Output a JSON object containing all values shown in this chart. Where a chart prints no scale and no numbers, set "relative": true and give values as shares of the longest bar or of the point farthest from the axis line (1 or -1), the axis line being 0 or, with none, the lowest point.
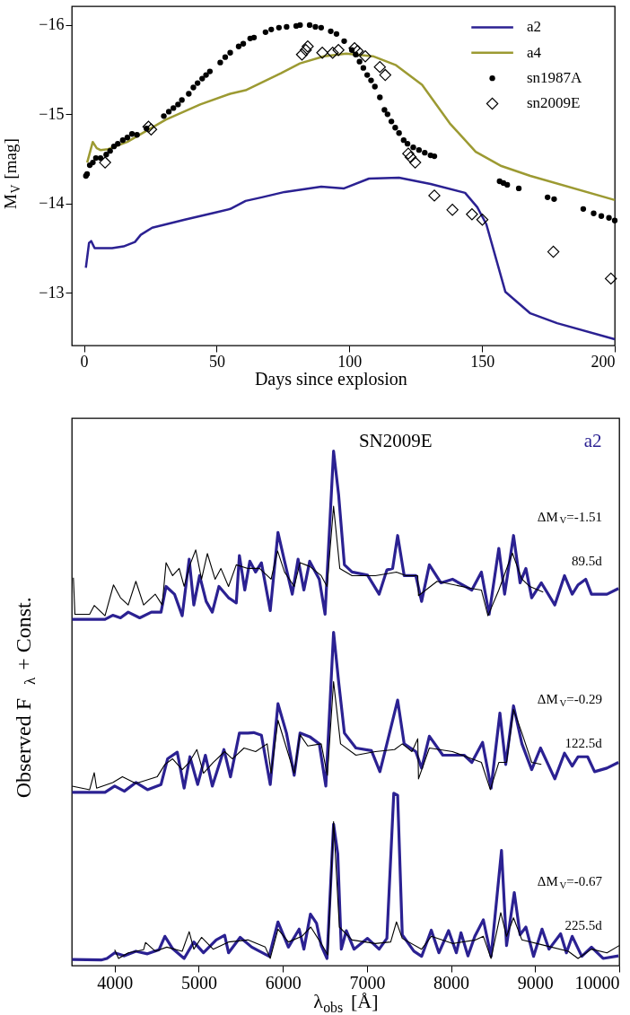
{
  "chart_data": [
    {
      "type": "line",
      "xlabel": "Days since explosion",
      "ylabel": "M$_{V}$ [mag]",
      "xlim": [
        -4.6,
        200
      ],
      "ylim": [
        -12.41,
        -16.21
      ],
      "xticks": [
        0,
        50,
        100,
        150,
        200
      ],
      "yticks": [
        -16,
        -15,
        -14,
        -13
      ],
      "legend": "top right",
      "grid": false,
      "series": [
        {
          "name": "a2",
          "type": "line",
          "color": "#2b2192",
          "x": [
            0.7,
            1.9,
            2.7,
            4.0,
            6.2,
            10.6,
            14.9,
            19.2,
            21.4,
            25.7,
            38.0,
            49.6,
            55.1,
            60.9,
            67.0,
            75.6,
            89.4,
            98.0,
            107.4,
            118.7,
            130.6,
            143.6,
            148.2,
            151.6,
            158.8,
            168.2,
            178.3,
            200
          ],
          "values": [
            -13.28,
            -13.56,
            -13.58,
            -13.5,
            -13.5,
            -13.5,
            -13.52,
            -13.57,
            -13.65,
            -13.73,
            -13.82,
            -13.9,
            -13.94,
            -14.03,
            -14.07,
            -14.13,
            -14.19,
            -14.17,
            -14.28,
            -14.29,
            -14.22,
            -14.12,
            -13.96,
            -13.77,
            -13.01,
            -12.77,
            -12.66,
            -12.48
          ]
        },
        {
          "name": "a4",
          "type": "line",
          "color": "#9c9a32",
          "x": [
            1.2,
            3.3,
            4.8,
            6.2,
            9.1,
            16.3,
            30.8,
            43.8,
            55.1,
            60.9,
            74.2,
            81.4,
            90.4,
            98.8,
            108.9,
            117.6,
            127.4,
            137.8,
            147.6,
            157.3,
            168.2,
            200
          ],
          "values": [
            -14.46,
            -14.69,
            -14.62,
            -14.6,
            -14.61,
            -14.69,
            -14.94,
            -15.11,
            -15.23,
            -15.27,
            -15.46,
            -15.57,
            -15.65,
            -15.68,
            -15.65,
            -15.55,
            -15.33,
            -14.9,
            -14.58,
            -14.42,
            -14.31,
            -14.04
          ]
        },
        {
          "name": "sn1987A",
          "type": "scatter",
          "marker": "circle",
          "color": "#000000",
          "x": [
            0.72,
            1.16,
            2.17,
            3.33,
            4.48,
            6.22,
            8.39,
            9.83,
            11.28,
            12.73,
            14.61,
            16.34,
            18.08,
            19.96,
            23.57,
            30.08,
            31.96,
            33.69,
            35.43,
            36.88,
            39.48,
            41.21,
            42.8,
            44.54,
            45.99,
            47.43,
            51.34,
            53.22,
            55.1,
            58.28,
            60.01,
            62.62,
            64.06,
            68.4,
            70.57,
            73.46,
            76.35,
            79.97,
            81.41,
            85.03,
            87.2,
            89.37,
            92.98,
            95.15,
            98.04,
            100.94,
            102.38,
            103.83,
            105.27,
            106.72,
            108.17,
            109.61,
            111.49,
            113.23,
            114.38,
            115.83,
            117.28,
            118.72,
            120.46,
            121.9,
            124.07,
            126.24,
            128.41,
            130.58,
            132.03,
            156.61,
            158.06,
            159.5,
            163.84,
            174.69,
            177.15,
            188.14,
            192.05,
            194.94,
            197.83,
            200.0
          ],
          "values": [
            -14.31,
            -14.33,
            -14.43,
            -14.46,
            -14.51,
            -14.51,
            -14.55,
            -14.59,
            -14.64,
            -14.67,
            -14.71,
            -14.74,
            -14.78,
            -14.77,
            -14.84,
            -14.98,
            -15.03,
            -15.07,
            -15.11,
            -15.16,
            -15.23,
            -15.3,
            -15.35,
            -15.4,
            -15.44,
            -15.48,
            -15.58,
            -15.64,
            -15.69,
            -15.76,
            -15.79,
            -15.85,
            -15.86,
            -15.92,
            -15.95,
            -15.97,
            -15.98,
            -15.99,
            -16.0,
            -16.0,
            -15.98,
            -15.97,
            -15.93,
            -15.9,
            -15.82,
            -15.72,
            -15.67,
            -15.59,
            -15.52,
            -15.44,
            -15.38,
            -15.31,
            -15.19,
            -15.05,
            -15.0,
            -14.92,
            -14.85,
            -14.79,
            -14.71,
            -14.67,
            -14.63,
            -14.6,
            -14.57,
            -14.54,
            -14.53,
            -14.25,
            -14.23,
            -14.21,
            -14.17,
            -14.07,
            -14.05,
            -13.94,
            -13.89,
            -13.86,
            -13.84,
            -13.81
          ]
        },
        {
          "name": "sn2009E",
          "type": "scatter",
          "marker": "diamond",
          "color": "#000000",
          "x": [
            7.95,
            24.3,
            25.31,
            82.14,
            83.59,
            84.31,
            89.8,
            93.71,
            95.88,
            101.95,
            103.11,
            106.0,
            111.49,
            113.52,
            122.2,
            123.07,
            124.8,
            132.03,
            138.83,
            146.2,
            150.11,
            176.86,
            198.55
          ],
          "values": [
            -14.46,
            -14.86,
            -14.83,
            -15.67,
            -15.72,
            -15.76,
            -15.69,
            -15.69,
            -15.72,
            -15.74,
            -15.71,
            -15.65,
            -15.53,
            -15.44,
            -14.56,
            -14.52,
            -14.46,
            -14.09,
            -13.93,
            -13.88,
            -13.82,
            -13.46,
            -13.16
          ]
        }
      ]
    },
    {
      "type": "line",
      "relative": true,
      "xlabel": "λ$_{obs}$ [Å]",
      "ylabel": "Observed F$_{λ}$ + Const.",
      "xlim": [
        3490,
        10000
      ],
      "xticks": [
        4000,
        5000,
        6000,
        7000,
        8000,
        9000,
        10000
      ],
      "legend": false,
      "grid": false,
      "series": [
        {
          "name": "a2",
          "color": "#2b2192",
          "x": [
            3495,
            3885,
            3977,
            4069,
            4161,
            4298,
            4436,
            4551,
            4611,
            4711,
            4803,
            4886,
            4941,
            5010,
            5088,
            5161,
            5240,
            5354,
            5446,
            5483,
            5547,
            5607,
            5676,
            5745,
            5850,
            5942,
            6020,
            6112,
            6181,
            6250,
            6319,
            6433,
            6502,
            6603,
            6663,
            6732,
            6823,
            7007,
            7145,
            7237,
            7305,
            7365,
            7443,
            7581,
            7650,
            7742,
            7879,
            8017,
            8247,
            8361,
            8453,
            8568,
            8637,
            8743,
            8821,
            8890,
            8959,
            9074,
            9234,
            9349,
            9441,
            9510,
            9601,
            9670,
            9854,
            9991
          ],
          "values": [
            0.673,
            0.673,
            0.681,
            0.676,
            0.687,
            0.676,
            0.687,
            0.687,
            0.737,
            0.722,
            0.68,
            0.79,
            0.701,
            0.758,
            0.708,
            0.687,
            0.737,
            0.715,
            0.705,
            0.797,
            0.73,
            0.786,
            0.765,
            0.783,
            0.69,
            0.842,
            0.786,
            0.722,
            0.79,
            0.73,
            0.786,
            0.751,
            0.683,
            1.0,
            0.915,
            0.779,
            0.765,
            0.759,
            0.722,
            0.769,
            0.772,
            0.836,
            0.758,
            0.758,
            0.708,
            0.779,
            0.744,
            0.751,
            0.73,
            0.765,
            0.683,
            0.811,
            0.722,
            0.836,
            0.744,
            0.772,
            0.715,
            0.744,
            0.701,
            0.758,
            0.722,
            0.74,
            0.751,
            0.722,
            0.722,
            0.733
          ]
        },
        {
          "name": "SN2009E",
          "color": "#000000",
          "x": [
            3509,
            3527,
            3702,
            3757,
            3885,
            3986,
            4069,
            4161,
            4252,
            4344,
            4482,
            4565,
            4611,
            4689,
            4767,
            4826,
            4895,
            4964,
            5033,
            5102,
            5194,
            5263,
            5354,
            5446,
            5584,
            5722,
            5860,
            5937,
            6020,
            6135,
            6204,
            6319,
            6456,
            6525,
            6603,
            6677,
            6823,
            7099,
            7351,
            7466,
            7604,
            7613,
            7834,
            8247,
            8361,
            8439,
            8568,
            8729,
            8843,
            8935,
            9096
          ],
          "values": [
            0.754,
            0.683,
            0.683,
            0.7,
            0.68,
            0.74,
            0.715,
            0.701,
            0.747,
            0.701,
            0.722,
            0.701,
            0.783,
            0.758,
            0.772,
            0.737,
            0.779,
            0.808,
            0.751,
            0.801,
            0.751,
            0.772,
            0.737,
            0.779,
            0.772,
            0.772,
            0.751,
            0.806,
            0.765,
            0.737,
            0.783,
            0.776,
            0.758,
            0.737,
            0.893,
            0.772,
            0.758,
            0.758,
            0.765,
            0.758,
            0.758,
            0.719,
            0.747,
            0.733,
            0.73,
            0.68,
            0.73,
            0.802,
            0.751,
            0.737,
            0.726
          ]
        },
        {
          "color": "#2b2192",
          "x": [
            3495,
            3885,
            4000,
            4115,
            4252,
            4390,
            4551,
            4629,
            4744,
            4826,
            4895,
            4987,
            5079,
            5161,
            5299,
            5377,
            5483,
            5584,
            5653,
            5745,
            5850,
            5942,
            6043,
            6135,
            6204,
            6319,
            6433,
            6511,
            6603,
            6663,
            6732,
            6869,
            7053,
            7154,
            7237,
            7365,
            7443,
            7581,
            7650,
            7742,
            7902,
            8155,
            8247,
            8375,
            8476,
            8581,
            8650,
            8743,
            8843,
            8959,
            9064,
            9234,
            9349,
            9441,
            9510,
            9624,
            9707,
            9854,
            9991
          ],
          "values": [
            0.337,
            0.337,
            0.349,
            0.339,
            0.356,
            0.342,
            0.352,
            0.402,
            0.415,
            0.345,
            0.406,
            0.352,
            0.409,
            0.349,
            0.42,
            0.367,
            0.452,
            0.452,
            0.453,
            0.448,
            0.352,
            0.509,
            0.452,
            0.37,
            0.452,
            0.445,
            0.431,
            0.349,
            0.648,
            0.552,
            0.452,
            0.423,
            0.418,
            0.377,
            0.431,
            0.516,
            0.431,
            0.416,
            0.384,
            0.446,
            0.409,
            0.409,
            0.395,
            0.434,
            0.345,
            0.491,
            0.391,
            0.505,
            0.431,
            0.381,
            0.423,
            0.363,
            0.413,
            0.388,
            0.406,
            0.406,
            0.377,
            0.384,
            0.395
          ]
        },
        {
          "color": "#000000",
          "x": [
            3495,
            3702,
            3757,
            3785,
            3977,
            4092,
            4252,
            4505,
            4597,
            4689,
            4803,
            4886,
            4977,
            5056,
            5171,
            5308,
            5400,
            5538,
            5676,
            5813,
            5860,
            5942,
            6043,
            6135,
            6204,
            6296,
            6456,
            6529,
            6603,
            6686,
            6869,
            7099,
            7328,
            7420,
            7535,
            7604,
            7613,
            7742,
            8017,
            8247,
            8361,
            8467,
            8568,
            8660,
            8743,
            8843,
            8959,
            9074
          ],
          "values": [
            0.349,
            0.342,
            0.375,
            0.345,
            0.356,
            0.367,
            0.354,
            0.367,
            0.391,
            0.402,
            0.381,
            0.395,
            0.42,
            0.374,
            0.395,
            0.416,
            0.402,
            0.423,
            0.416,
            0.431,
            0.374,
            0.477,
            0.423,
            0.374,
            0.449,
            0.427,
            0.431,
            0.37,
            0.552,
            0.431,
            0.409,
            0.416,
            0.42,
            0.431,
            0.416,
            0.441,
            0.363,
            0.423,
            0.416,
            0.402,
            0.395,
            0.342,
            0.395,
            0.395,
            0.498,
            0.452,
            0.395,
            0.391
          ]
        },
        {
          "color": "#2b2192",
          "x": [
            3495,
            3839,
            3908,
            4000,
            4115,
            4252,
            4390,
            4528,
            4597,
            4689,
            4826,
            4941,
            5056,
            5207,
            5308,
            5354,
            5492,
            5630,
            5837,
            5942,
            6066,
            6194,
            6250,
            6328,
            6401,
            6456,
            6525,
            6603,
            6653,
            6695,
            6755,
            6846,
            7007,
            7145,
            7237,
            7319,
            7365,
            7420,
            7558,
            7650,
            7765,
            7856,
            7971,
            8063,
            8118,
            8201,
            8283,
            8384,
            8476,
            8600,
            8660,
            8752,
            8821,
            8890,
            8981,
            9082,
            9165,
            9303,
            9372,
            9441,
            9555,
            9670,
            9808,
            9991
          ],
          "values": [
            0.012,
            0.011,
            0.014,
            0.025,
            0.019,
            0.028,
            0.023,
            0.031,
            0.057,
            0.033,
            0.014,
            0.046,
            0.025,
            0.05,
            0.059,
            0.025,
            0.055,
            0.036,
            0.018,
            0.085,
            0.036,
            0.071,
            0.032,
            0.1,
            0.082,
            0.039,
            0.014,
            0.275,
            0.217,
            0.032,
            0.068,
            0.032,
            0.053,
            0.032,
            0.053,
            0.335,
            0.331,
            0.06,
            0.028,
            0.018,
            0.069,
            0.025,
            0.068,
            0.025,
            0.064,
            0.019,
            0.057,
            0.089,
            0.018,
            0.224,
            0.039,
            0.142,
            0.06,
            0.075,
            0.018,
            0.071,
            0.032,
            0.062,
            0.025,
            0.057,
            0.018,
            0.036,
            0.014,
            0.019
          ]
        },
        {
          "color": "#000000",
          "x": [
            4000,
            4046,
            4161,
            4344,
            4367,
            4482,
            4620,
            4803,
            4886,
            4941,
            5033,
            5171,
            5354,
            5584,
            5791,
            5850,
            5942,
            6066,
            6227,
            6332,
            6456,
            6534,
            6603,
            6672,
            6823,
            7099,
            7282,
            7351,
            7420,
            7650,
            7765,
            8017,
            8293,
            8384,
            8476,
            8591,
            8660,
            8743,
            8843,
            9119,
            9394,
            9510,
            9670,
            9854,
            10000
          ],
          "values": [
            0.031,
            0.014,
            0.025,
            0.031,
            0.045,
            0.028,
            0.036,
            0.028,
            0.066,
            0.032,
            0.055,
            0.032,
            0.046,
            0.05,
            0.036,
            0.014,
            0.071,
            0.046,
            0.057,
            0.075,
            0.043,
            0.021,
            0.28,
            0.075,
            0.05,
            0.043,
            0.046,
            0.085,
            0.053,
            0.032,
            0.057,
            0.043,
            0.05,
            0.057,
            0.014,
            0.103,
            0.057,
            0.093,
            0.05,
            0.039,
            0.028,
            0.014,
            0.032,
            0.025,
            0.039
          ]
        }
      ],
      "annotations": [
        "ΔM$_{V}$=-1.51",
        "89.5d",
        "ΔM$_{V}$=-0.29",
        "122.5d",
        "ΔM$_{V}$=-0.67",
        "225.5d"
      ]
    }
  ]
}
